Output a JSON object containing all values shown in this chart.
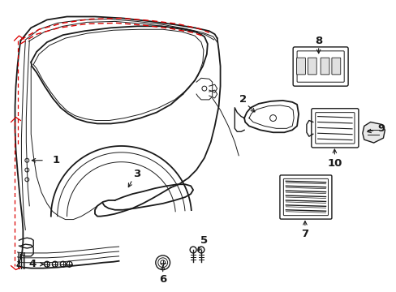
{
  "bg_color": "#ffffff",
  "line_color": "#1a1a1a",
  "red_color": "#dd0000",
  "lw_main": 1.3,
  "lw_thin": 0.7,
  "lw_med": 1.0
}
